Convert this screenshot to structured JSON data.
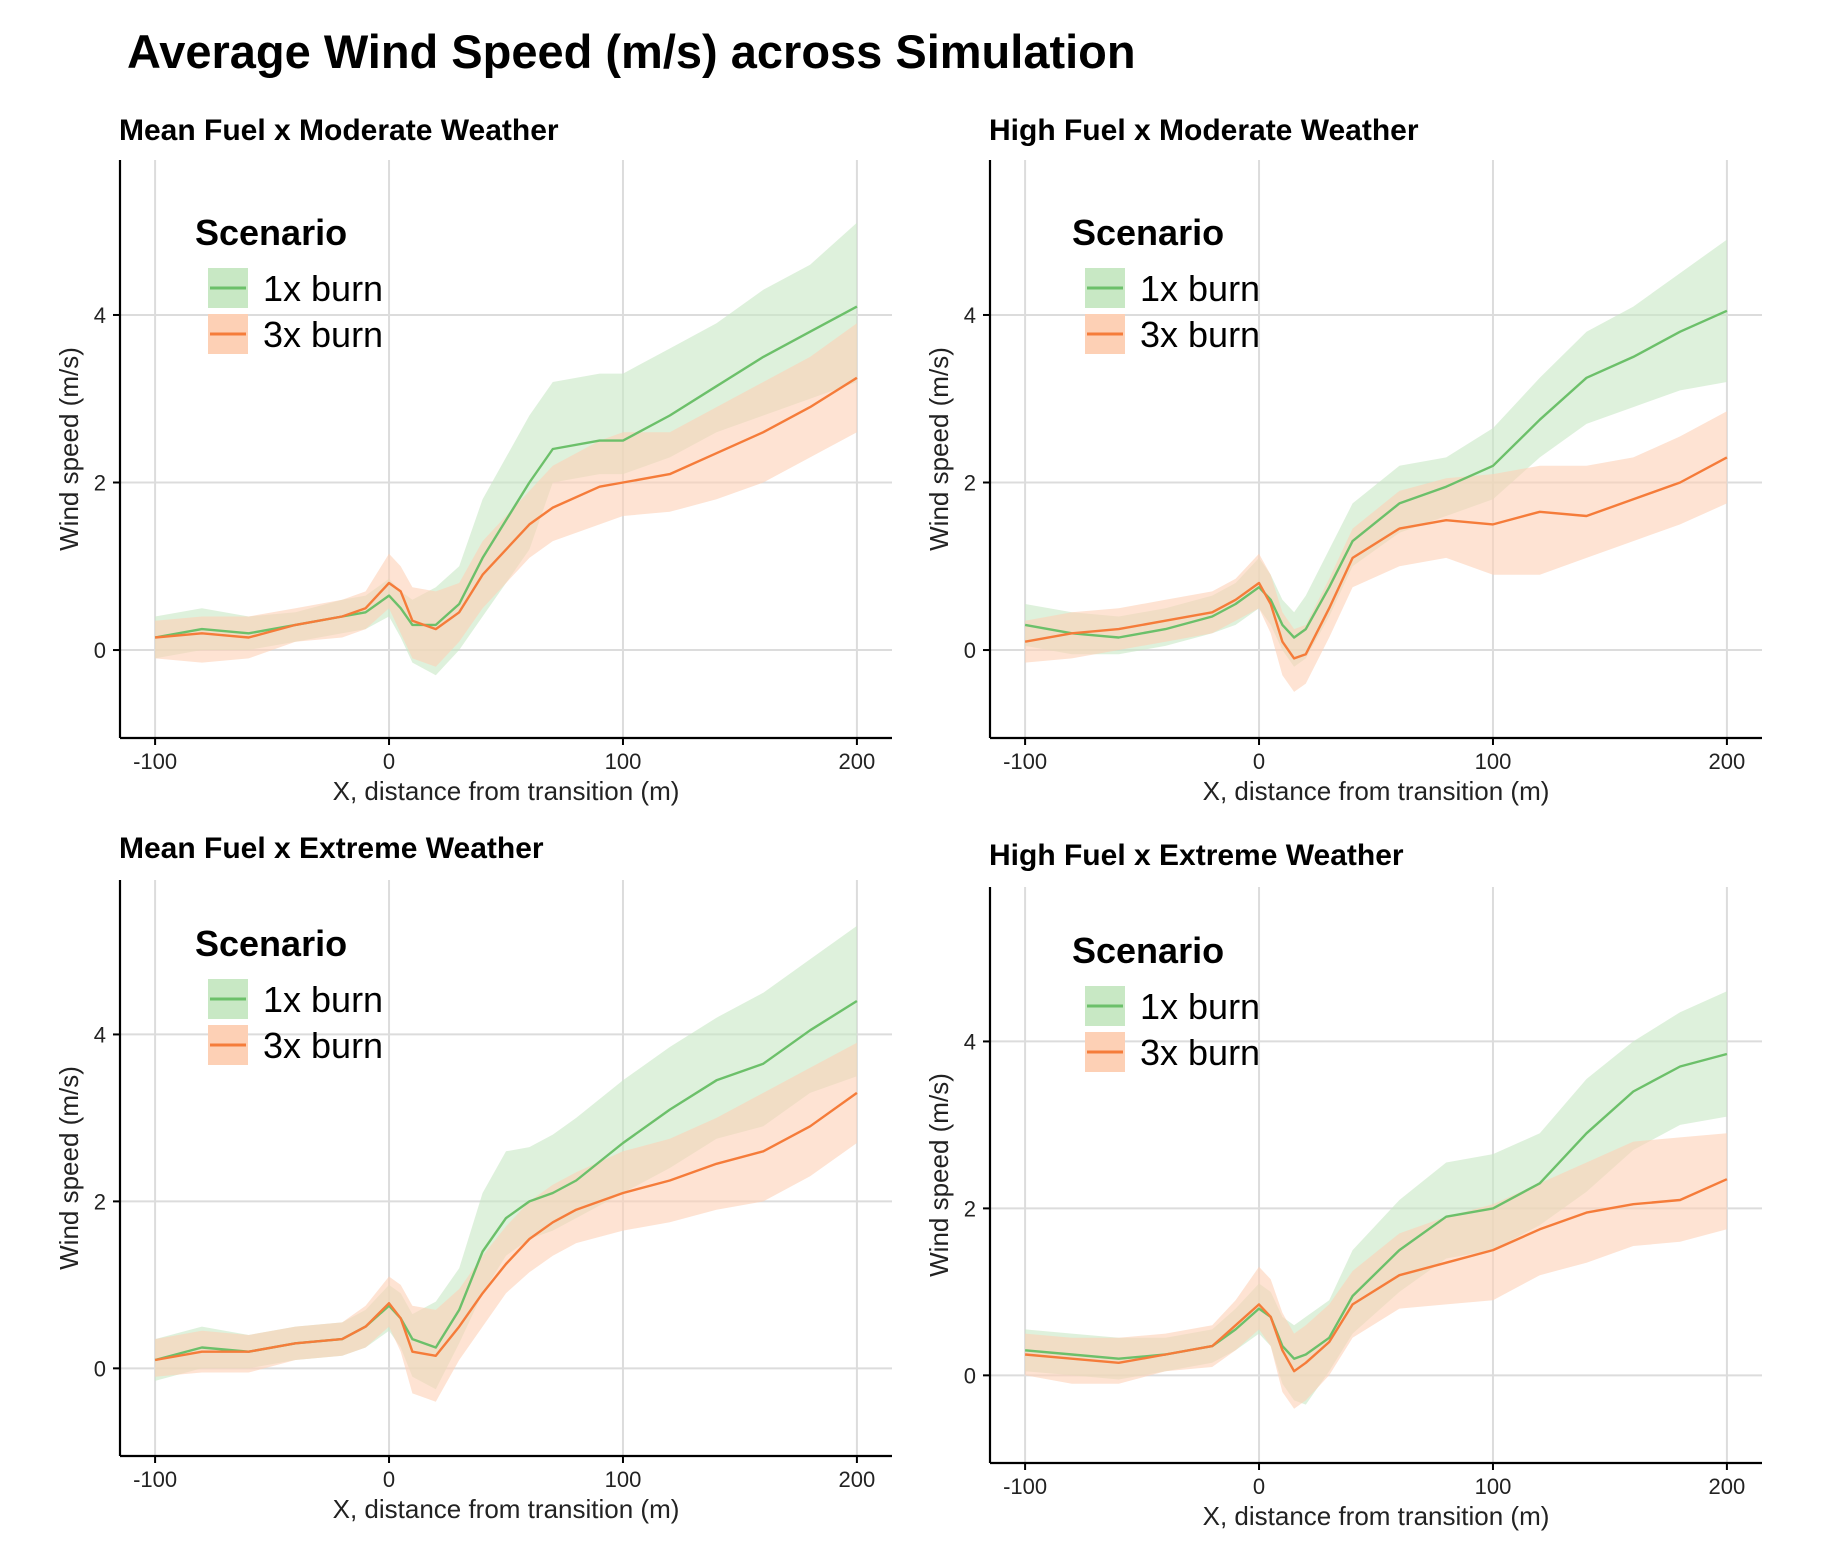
{
  "title": "Average Wind Speed (m/s) across Simulation",
  "colors": {
    "1x burn": "#6cc06a",
    "3x burn": "#f57c3a",
    "1x burn_band": "#c8e8c4",
    "3x burn_band": "#fdd0b5"
  },
  "chart_data": [
    {
      "type": "line",
      "title": "Mean Fuel x Moderate Weather",
      "xlabel": "X, distance from transition (m)",
      "ylabel": "Wind speed (m/s)",
      "xlim": [
        -115,
        215
      ],
      "ylim": [
        -1.05,
        5.85
      ],
      "xticks": [
        -100,
        0,
        100,
        200
      ],
      "yticks": [
        0,
        2,
        4
      ],
      "grid": true,
      "legend": {
        "title": "Scenario",
        "position": "top-left"
      },
      "series": [
        {
          "name": "1x burn",
          "x": [
            -100,
            -80,
            -60,
            -40,
            -20,
            -10,
            0,
            5,
            10,
            20,
            30,
            40,
            60,
            70,
            90,
            100,
            120,
            140,
            160,
            180,
            200
          ],
          "y": [
            0.15,
            0.25,
            0.2,
            0.3,
            0.4,
            0.45,
            0.65,
            0.5,
            0.3,
            0.3,
            0.55,
            1.1,
            2.0,
            2.4,
            2.5,
            2.5,
            2.8,
            3.15,
            3.5,
            3.8,
            4.1
          ],
          "lower": [
            -0.1,
            0.0,
            0.0,
            0.1,
            0.2,
            0.25,
            0.4,
            0.15,
            -0.15,
            -0.3,
            0.0,
            0.4,
            1.2,
            2.0,
            2.1,
            2.1,
            2.3,
            2.6,
            2.8,
            3.0,
            3.2
          ],
          "upper": [
            0.4,
            0.5,
            0.4,
            0.45,
            0.6,
            0.65,
            0.85,
            0.7,
            0.6,
            0.75,
            1.0,
            1.8,
            2.8,
            3.2,
            3.3,
            3.3,
            3.6,
            3.9,
            4.3,
            4.6,
            5.1
          ]
        },
        {
          "name": "3x burn",
          "x": [
            -100,
            -80,
            -60,
            -40,
            -20,
            -10,
            0,
            5,
            10,
            20,
            30,
            40,
            60,
            70,
            90,
            100,
            120,
            140,
            160,
            180,
            200
          ],
          "y": [
            0.15,
            0.2,
            0.15,
            0.3,
            0.4,
            0.5,
            0.8,
            0.7,
            0.35,
            0.25,
            0.45,
            0.9,
            1.5,
            1.7,
            1.95,
            2.0,
            2.1,
            2.35,
            2.6,
            2.9,
            3.25
          ],
          "lower": [
            -0.1,
            -0.15,
            -0.1,
            0.1,
            0.15,
            0.25,
            0.5,
            0.2,
            -0.1,
            -0.2,
            0.1,
            0.5,
            1.1,
            1.3,
            1.5,
            1.6,
            1.65,
            1.8,
            2.0,
            2.3,
            2.6
          ],
          "upper": [
            0.35,
            0.4,
            0.4,
            0.5,
            0.6,
            0.7,
            1.15,
            1.0,
            0.75,
            0.7,
            0.8,
            1.3,
            1.9,
            2.2,
            2.5,
            2.6,
            2.6,
            2.9,
            3.2,
            3.5,
            3.9
          ]
        }
      ]
    },
    {
      "type": "line",
      "title": "High Fuel x Moderate Weather",
      "xlabel": "X, distance from transition (m)",
      "ylabel": "Wind speed (m/s)",
      "xlim": [
        -115,
        215
      ],
      "ylim": [
        -1.05,
        5.85
      ],
      "xticks": [
        -100,
        0,
        100,
        200
      ],
      "yticks": [
        0,
        2,
        4
      ],
      "grid": true,
      "legend": {
        "title": "Scenario",
        "position": "top-left"
      },
      "series": [
        {
          "name": "1x burn",
          "x": [
            -100,
            -80,
            -60,
            -40,
            -20,
            -10,
            0,
            5,
            10,
            15,
            20,
            30,
            40,
            60,
            80,
            100,
            120,
            140,
            160,
            180,
            200
          ],
          "y": [
            0.3,
            0.2,
            0.15,
            0.25,
            0.4,
            0.55,
            0.75,
            0.6,
            0.3,
            0.15,
            0.25,
            0.75,
            1.3,
            1.75,
            1.95,
            2.2,
            2.75,
            3.25,
            3.5,
            3.8,
            4.05
          ],
          "lower": [
            0.05,
            -0.05,
            -0.05,
            0.05,
            0.2,
            0.3,
            0.5,
            0.3,
            0.0,
            -0.2,
            -0.1,
            0.4,
            1.0,
            1.4,
            1.6,
            1.8,
            2.3,
            2.7,
            2.9,
            3.1,
            3.2
          ],
          "upper": [
            0.55,
            0.45,
            0.4,
            0.5,
            0.65,
            0.8,
            1.1,
            0.9,
            0.6,
            0.45,
            0.65,
            1.2,
            1.75,
            2.2,
            2.3,
            2.65,
            3.25,
            3.8,
            4.1,
            4.5,
            4.9
          ]
        },
        {
          "name": "3x burn",
          "x": [
            -100,
            -80,
            -60,
            -40,
            -20,
            -10,
            0,
            5,
            10,
            15,
            20,
            30,
            40,
            60,
            80,
            100,
            120,
            140,
            160,
            180,
            200
          ],
          "y": [
            0.1,
            0.2,
            0.25,
            0.35,
            0.45,
            0.6,
            0.8,
            0.55,
            0.1,
            -0.1,
            -0.05,
            0.5,
            1.1,
            1.45,
            1.55,
            1.5,
            1.65,
            1.6,
            1.8,
            2.0,
            2.3
          ],
          "lower": [
            -0.15,
            -0.1,
            0.0,
            0.1,
            0.2,
            0.35,
            0.5,
            0.2,
            -0.3,
            -0.5,
            -0.4,
            0.15,
            0.75,
            1.0,
            1.1,
            0.9,
            0.9,
            1.1,
            1.3,
            1.5,
            1.75
          ],
          "upper": [
            0.35,
            0.45,
            0.5,
            0.6,
            0.7,
            0.85,
            1.15,
            0.9,
            0.45,
            0.25,
            0.3,
            0.85,
            1.45,
            1.9,
            2.05,
            2.1,
            2.2,
            2.2,
            2.3,
            2.55,
            2.85
          ]
        }
      ]
    },
    {
      "type": "line",
      "title": "Mean Fuel x Extreme Weather",
      "xlabel": "X, distance from transition (m)",
      "ylabel": "Wind speed (m/s)",
      "xlim": [
        -115,
        215
      ],
      "ylim": [
        -1.05,
        5.85
      ],
      "xticks": [
        -100,
        0,
        100,
        200
      ],
      "yticks": [
        0,
        2,
        4
      ],
      "grid": true,
      "legend": {
        "title": "Scenario",
        "position": "top-left"
      },
      "series": [
        {
          "name": "1x burn",
          "x": [
            -100,
            -80,
            -60,
            -40,
            -20,
            -10,
            0,
            5,
            10,
            20,
            30,
            40,
            50,
            60,
            70,
            80,
            100,
            120,
            140,
            160,
            180,
            200
          ],
          "y": [
            0.1,
            0.25,
            0.2,
            0.3,
            0.35,
            0.5,
            0.75,
            0.6,
            0.35,
            0.25,
            0.7,
            1.4,
            1.8,
            2.0,
            2.1,
            2.25,
            2.7,
            3.1,
            3.45,
            3.65,
            4.05,
            4.4
          ],
          "lower": [
            -0.15,
            0.0,
            0.0,
            0.1,
            0.15,
            0.25,
            0.45,
            0.25,
            -0.1,
            -0.25,
            0.3,
            0.9,
            1.35,
            1.55,
            1.65,
            1.8,
            2.1,
            2.4,
            2.75,
            2.9,
            3.3,
            3.5
          ],
          "upper": [
            0.35,
            0.5,
            0.4,
            0.5,
            0.55,
            0.7,
            1.0,
            0.9,
            0.65,
            0.8,
            1.2,
            2.1,
            2.6,
            2.65,
            2.8,
            3.0,
            3.45,
            3.85,
            4.2,
            4.5,
            4.9,
            5.3
          ]
        },
        {
          "name": "3x burn",
          "x": [
            -100,
            -80,
            -60,
            -40,
            -20,
            -10,
            0,
            5,
            10,
            20,
            30,
            40,
            50,
            60,
            70,
            80,
            100,
            120,
            140,
            160,
            180,
            200
          ],
          "y": [
            0.1,
            0.2,
            0.2,
            0.3,
            0.35,
            0.5,
            0.78,
            0.6,
            0.2,
            0.15,
            0.5,
            0.9,
            1.25,
            1.55,
            1.75,
            1.9,
            2.1,
            2.25,
            2.45,
            2.6,
            2.9,
            3.3
          ],
          "lower": [
            -0.1,
            -0.05,
            -0.05,
            0.1,
            0.15,
            0.25,
            0.5,
            0.2,
            -0.3,
            -0.4,
            0.1,
            0.5,
            0.9,
            1.15,
            1.35,
            1.5,
            1.65,
            1.75,
            1.9,
            2.0,
            2.3,
            2.7
          ],
          "upper": [
            0.35,
            0.45,
            0.4,
            0.5,
            0.55,
            0.75,
            1.1,
            1.0,
            0.75,
            0.7,
            0.95,
            1.35,
            1.7,
            2.0,
            2.2,
            2.35,
            2.6,
            2.75,
            3.0,
            3.3,
            3.6,
            3.9
          ]
        }
      ]
    },
    {
      "type": "line",
      "title": "High Fuel x Extreme Weather",
      "xlabel": "X, distance from transition (m)",
      "ylabel": "Wind speed (m/s)",
      "xlim": [
        -115,
        215
      ],
      "ylim": [
        -1.05,
        5.85
      ],
      "xticks": [
        -100,
        0,
        100,
        200
      ],
      "yticks": [
        0,
        2,
        4
      ],
      "grid": true,
      "legend": {
        "title": "Scenario",
        "position": "top-left"
      },
      "series": [
        {
          "name": "1x burn",
          "x": [
            -100,
            -80,
            -60,
            -40,
            -20,
            -10,
            0,
            5,
            10,
            15,
            20,
            30,
            40,
            60,
            80,
            100,
            120,
            140,
            160,
            180,
            200
          ],
          "y": [
            0.3,
            0.25,
            0.2,
            0.25,
            0.35,
            0.55,
            0.8,
            0.7,
            0.35,
            0.2,
            0.25,
            0.45,
            0.95,
            1.5,
            1.9,
            2.0,
            2.3,
            2.9,
            3.4,
            3.7,
            3.85
          ],
          "lower": [
            0.05,
            0.0,
            -0.05,
            0.05,
            0.15,
            0.3,
            0.5,
            0.35,
            -0.1,
            -0.3,
            -0.35,
            0.05,
            0.5,
            1.0,
            1.4,
            1.5,
            1.8,
            2.2,
            2.7,
            3.0,
            3.1
          ],
          "upper": [
            0.55,
            0.5,
            0.45,
            0.45,
            0.55,
            0.8,
            1.1,
            1.0,
            0.7,
            0.6,
            0.7,
            0.9,
            1.5,
            2.1,
            2.55,
            2.65,
            2.9,
            3.55,
            4.0,
            4.35,
            4.6
          ]
        },
        {
          "name": "3x burn",
          "x": [
            -100,
            -80,
            -60,
            -40,
            -20,
            -10,
            0,
            5,
            10,
            15,
            20,
            30,
            40,
            60,
            80,
            100,
            120,
            140,
            160,
            180,
            200
          ],
          "y": [
            0.25,
            0.2,
            0.15,
            0.25,
            0.35,
            0.6,
            0.85,
            0.7,
            0.3,
            0.05,
            0.15,
            0.4,
            0.85,
            1.2,
            1.35,
            1.5,
            1.75,
            1.95,
            2.05,
            2.1,
            2.35
          ],
          "lower": [
            0.0,
            -0.1,
            -0.1,
            0.05,
            0.1,
            0.3,
            0.55,
            0.35,
            -0.2,
            -0.4,
            -0.3,
            0.0,
            0.45,
            0.8,
            0.85,
            0.9,
            1.2,
            1.35,
            1.55,
            1.6,
            1.75
          ],
          "upper": [
            0.5,
            0.45,
            0.45,
            0.5,
            0.6,
            0.9,
            1.3,
            1.15,
            0.75,
            0.5,
            0.6,
            0.85,
            1.25,
            1.7,
            1.9,
            2.05,
            2.3,
            2.55,
            2.8,
            2.85,
            2.9
          ]
        }
      ]
    }
  ]
}
